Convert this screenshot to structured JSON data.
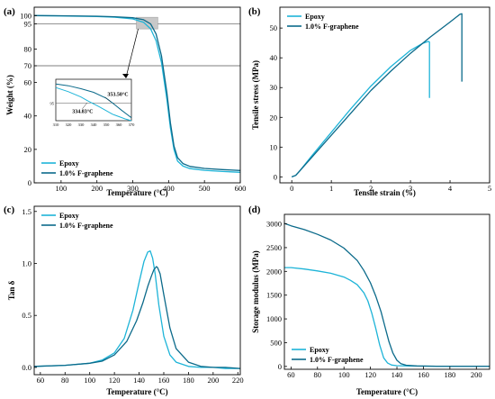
{
  "colors": {
    "epoxy": "#1EB4D8",
    "fgraphene": "#0B6A8A",
    "refline": "#555555",
    "highlight": "#c8c8c8"
  },
  "chart_data": [
    {
      "id": "a",
      "letter": "(a)",
      "type": "line",
      "xlabel": "Temperature (°C)",
      "ylabel": "Weight (%)",
      "xlim": [
        25,
        600
      ],
      "ylim": [
        0,
        105
      ],
      "xticks": [
        100,
        200,
        300,
        400,
        500,
        600
      ],
      "yticks": [
        0,
        20,
        40,
        60,
        70,
        80,
        95,
        100
      ],
      "hlines": [
        95,
        70
      ],
      "legend_pos": "bottom-left",
      "series": [
        {
          "name": "Epoxy",
          "color_key": "epoxy",
          "x": [
            25,
            100,
            200,
            250,
            300,
            330,
            350,
            365,
            380,
            395,
            405,
            415,
            425,
            440,
            460,
            500,
            550,
            600
          ],
          "y": [
            100,
            99.8,
            99.4,
            99,
            98,
            96,
            92,
            85,
            72,
            50,
            33,
            20,
            13,
            10,
            8.5,
            7.5,
            6.8,
            6.3
          ]
        },
        {
          "name": "1.0% F-graphene",
          "color_key": "fgraphene",
          "x": [
            25,
            100,
            200,
            250,
            300,
            330,
            350,
            365,
            380,
            395,
            405,
            415,
            425,
            440,
            460,
            500,
            550,
            600
          ],
          "y": [
            100,
            99.9,
            99.6,
            99.3,
            98.7,
            97.5,
            95,
            89,
            76,
            54,
            36,
            22,
            15,
            11.5,
            9.8,
            8.6,
            7.9,
            7.4
          ]
        }
      ],
      "inset": {
        "xlim": [
          310,
          370
        ],
        "ylim": [
          92,
          99
        ],
        "xticks": [
          310,
          320,
          330,
          340,
          350,
          360,
          370
        ],
        "ytick_label": "95",
        "hline": 95,
        "annotations": [
          "353.50°C",
          "334.83°C"
        ],
        "series": [
          {
            "color_key": "epoxy",
            "x": [
              310,
              320,
              330,
              335,
              345,
              355,
              365,
              370
            ],
            "y": [
              97.6,
              96.9,
              96,
              95.4,
              94.3,
              93.1,
              92.3,
              92
            ]
          },
          {
            "color_key": "fgraphene",
            "x": [
              310,
              320,
              330,
              340,
              350,
              355,
              362,
              370
            ],
            "y": [
              98.2,
              97.9,
              97.4,
              96.8,
              95.8,
              95,
              93.8,
              92.5
            ]
          }
        ]
      }
    },
    {
      "id": "b",
      "letter": "(b)",
      "type": "line",
      "xlabel": "Tensile strain (%)",
      "ylabel": "Tensile stress (MPa)",
      "xlim": [
        -0.3,
        5.0
      ],
      "ylim": [
        -2,
        57
      ],
      "xticks": [
        0,
        1,
        2,
        3,
        4,
        5
      ],
      "yticks": [
        0,
        10,
        20,
        30,
        40,
        50
      ],
      "legend_pos": "top-left",
      "series": [
        {
          "name": "Epoxy",
          "color_key": "epoxy",
          "x": [
            0,
            0.1,
            0.2,
            0.5,
            1.0,
            1.5,
            2.0,
            2.5,
            3.0,
            3.3,
            3.45,
            3.48,
            3.48
          ],
          "y": [
            0,
            0.5,
            2,
            7,
            15,
            23,
            30.5,
            37,
            42.5,
            44.8,
            45.5,
            45.3,
            26.5
          ]
        },
        {
          "name": "1.0% F-graphene",
          "color_key": "fgraphene",
          "x": [
            0,
            0.1,
            0.2,
            0.5,
            1.0,
            1.5,
            2.0,
            2.5,
            3.0,
            3.5,
            4.0,
            4.25,
            4.3,
            4.3
          ],
          "y": [
            0,
            0.5,
            2,
            6.5,
            14,
            21.5,
            29,
            35.5,
            41.5,
            47,
            52,
            54.6,
            54.8,
            32
          ]
        }
      ]
    },
    {
      "id": "c",
      "letter": "(c)",
      "type": "line",
      "xlabel": "Temperature (°C)",
      "ylabel": "Tan δ",
      "xlim": [
        55,
        222
      ],
      "ylim": [
        -0.07,
        1.55
      ],
      "xticks": [
        60,
        80,
        100,
        120,
        140,
        160,
        180,
        200,
        220
      ],
      "yticks": [
        0.0,
        0.5,
        1.0,
        1.5
      ],
      "ytick_labels": [
        "0.0",
        "0.5",
        "1.0",
        "1.5"
      ],
      "legend_pos": "top-left",
      "series": [
        {
          "name": "Epoxy",
          "color_key": "epoxy",
          "x": [
            55,
            80,
            100,
            110,
            120,
            128,
            135,
            140,
            144,
            147,
            149,
            151,
            153,
            156,
            160,
            165,
            170,
            180,
            190,
            200,
            210,
            222
          ],
          "y": [
            0.01,
            0.02,
            0.04,
            0.07,
            0.14,
            0.28,
            0.55,
            0.82,
            1.02,
            1.11,
            1.12,
            1.05,
            0.9,
            0.6,
            0.3,
            0.12,
            0.05,
            0.01,
            0.0,
            0.0,
            -0.01,
            -0.01
          ]
        },
        {
          "name": "1.0% F-graphene",
          "color_key": "fgraphene",
          "x": [
            55,
            80,
            100,
            110,
            120,
            130,
            138,
            143,
            147,
            150,
            152,
            154,
            155,
            157,
            160,
            165,
            170,
            180,
            190,
            200,
            210,
            222
          ],
          "y": [
            0.01,
            0.02,
            0.04,
            0.06,
            0.12,
            0.25,
            0.45,
            0.62,
            0.78,
            0.88,
            0.94,
            0.97,
            0.96,
            0.9,
            0.7,
            0.38,
            0.18,
            0.05,
            0.01,
            0.0,
            0.0,
            -0.01
          ]
        }
      ]
    },
    {
      "id": "d",
      "letter": "(d)",
      "type": "line",
      "xlabel": "Temperature (°C)",
      "ylabel": "Storage modulus (MPa)",
      "xlim": [
        55,
        210
      ],
      "ylim": [
        -60,
        3200
      ],
      "xticks": [
        60,
        80,
        100,
        120,
        140,
        160,
        180,
        200
      ],
      "yticks": [
        0,
        500,
        1000,
        1500,
        2000,
        2500,
        3000
      ],
      "legend_pos": "bottom-left",
      "series": [
        {
          "name": "Epoxy",
          "color_key": "epoxy",
          "x": [
            55,
            60,
            70,
            80,
            90,
            100,
            105,
            110,
            115,
            118,
            121,
            124,
            127,
            130,
            133,
            136,
            140,
            150,
            170,
            210
          ],
          "y": [
            2080,
            2080,
            2050,
            2010,
            1960,
            1880,
            1810,
            1720,
            1550,
            1380,
            1120,
            800,
            450,
            180,
            70,
            30,
            15,
            8,
            5,
            5
          ]
        },
        {
          "name": "1.0% F-graphene",
          "color_key": "fgraphene",
          "x": [
            55,
            60,
            70,
            80,
            90,
            100,
            110,
            115,
            120,
            124,
            128,
            131,
            134,
            137,
            140,
            143,
            147,
            155,
            170,
            210
          ],
          "y": [
            3010,
            2960,
            2880,
            2780,
            2660,
            2490,
            2230,
            2020,
            1760,
            1480,
            1150,
            830,
            520,
            280,
            130,
            60,
            25,
            10,
            5,
            5
          ]
        }
      ]
    }
  ]
}
